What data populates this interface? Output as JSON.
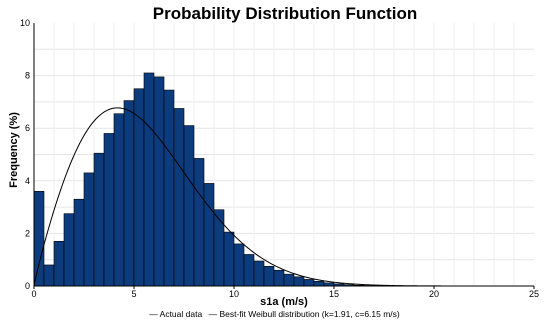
{
  "chart_data": {
    "type": "bar",
    "title": "Probability Distribution Function",
    "xlabel": "s1a (m/s)",
    "ylabel": "Frequency (%)",
    "xlim": [
      0,
      25
    ],
    "ylim": [
      0,
      10
    ],
    "x_ticks": [
      0,
      5,
      10,
      15,
      20,
      25
    ],
    "y_ticks": [
      0,
      2,
      4,
      6,
      8,
      10
    ],
    "grid": true,
    "legend_position": "bottom",
    "bar_color": "#0d3c7e",
    "line_color": "#000000",
    "bin_width": 0.5,
    "bars": {
      "name": "Actual data",
      "x_start": [
        0,
        0.5,
        1,
        1.5,
        2,
        2.5,
        3,
        3.5,
        4,
        4.5,
        5,
        5.5,
        6,
        6.5,
        7,
        7.5,
        8,
        8.5,
        9,
        9.5,
        10,
        10.5,
        11,
        11.5,
        12,
        12.5,
        13,
        13.5,
        14,
        14.5,
        15,
        15.5,
        16,
        16.5,
        17,
        17.5,
        18
      ],
      "values": [
        3.6,
        0.8,
        1.7,
        2.75,
        3.3,
        4.3,
        5.05,
        5.8,
        6.55,
        7.05,
        7.5,
        8.1,
        7.95,
        7.45,
        6.75,
        6.1,
        4.85,
        3.9,
        2.9,
        2.05,
        1.6,
        1.2,
        0.95,
        0.75,
        0.6,
        0.45,
        0.35,
        0.25,
        0.18,
        0.12,
        0.08,
        0.05,
        0.03,
        0.02,
        0.015,
        0.01,
        0.01
      ]
    },
    "weibull": {
      "name": "Best-fit Weibull distribution",
      "k": 1.91,
      "c": 6.15,
      "legend_label": "Best-fit Weibull distribution (k=1.91, c=6.15 m/s)"
    },
    "legend": [
      "Actual data",
      "Best-fit Weibull distribution (k=1.91, c=6.15 m/s)"
    ]
  }
}
